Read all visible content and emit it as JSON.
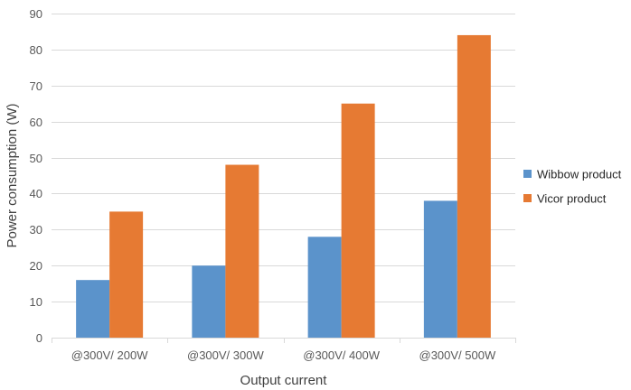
{
  "chart_data": {
    "type": "bar",
    "title": "",
    "xlabel": "Output current",
    "ylabel": "Power consumption (W)",
    "categories": [
      "@300V/ 200W",
      "@300V/ 300W",
      "@300V/ 400W",
      "@300V/ 500W"
    ],
    "series": [
      {
        "name": "Wibbow product",
        "values": [
          16,
          20,
          28,
          38
        ],
        "color": "#5b93cb"
      },
      {
        "name": "Vicor product",
        "values": [
          35,
          48,
          65,
          84
        ],
        "color": "#e67a33"
      }
    ],
    "ylim": [
      0,
      90
    ],
    "yticks": [
      0,
      10,
      20,
      30,
      40,
      50,
      60,
      70,
      80,
      90
    ],
    "grid": true,
    "legend_position": "right"
  }
}
